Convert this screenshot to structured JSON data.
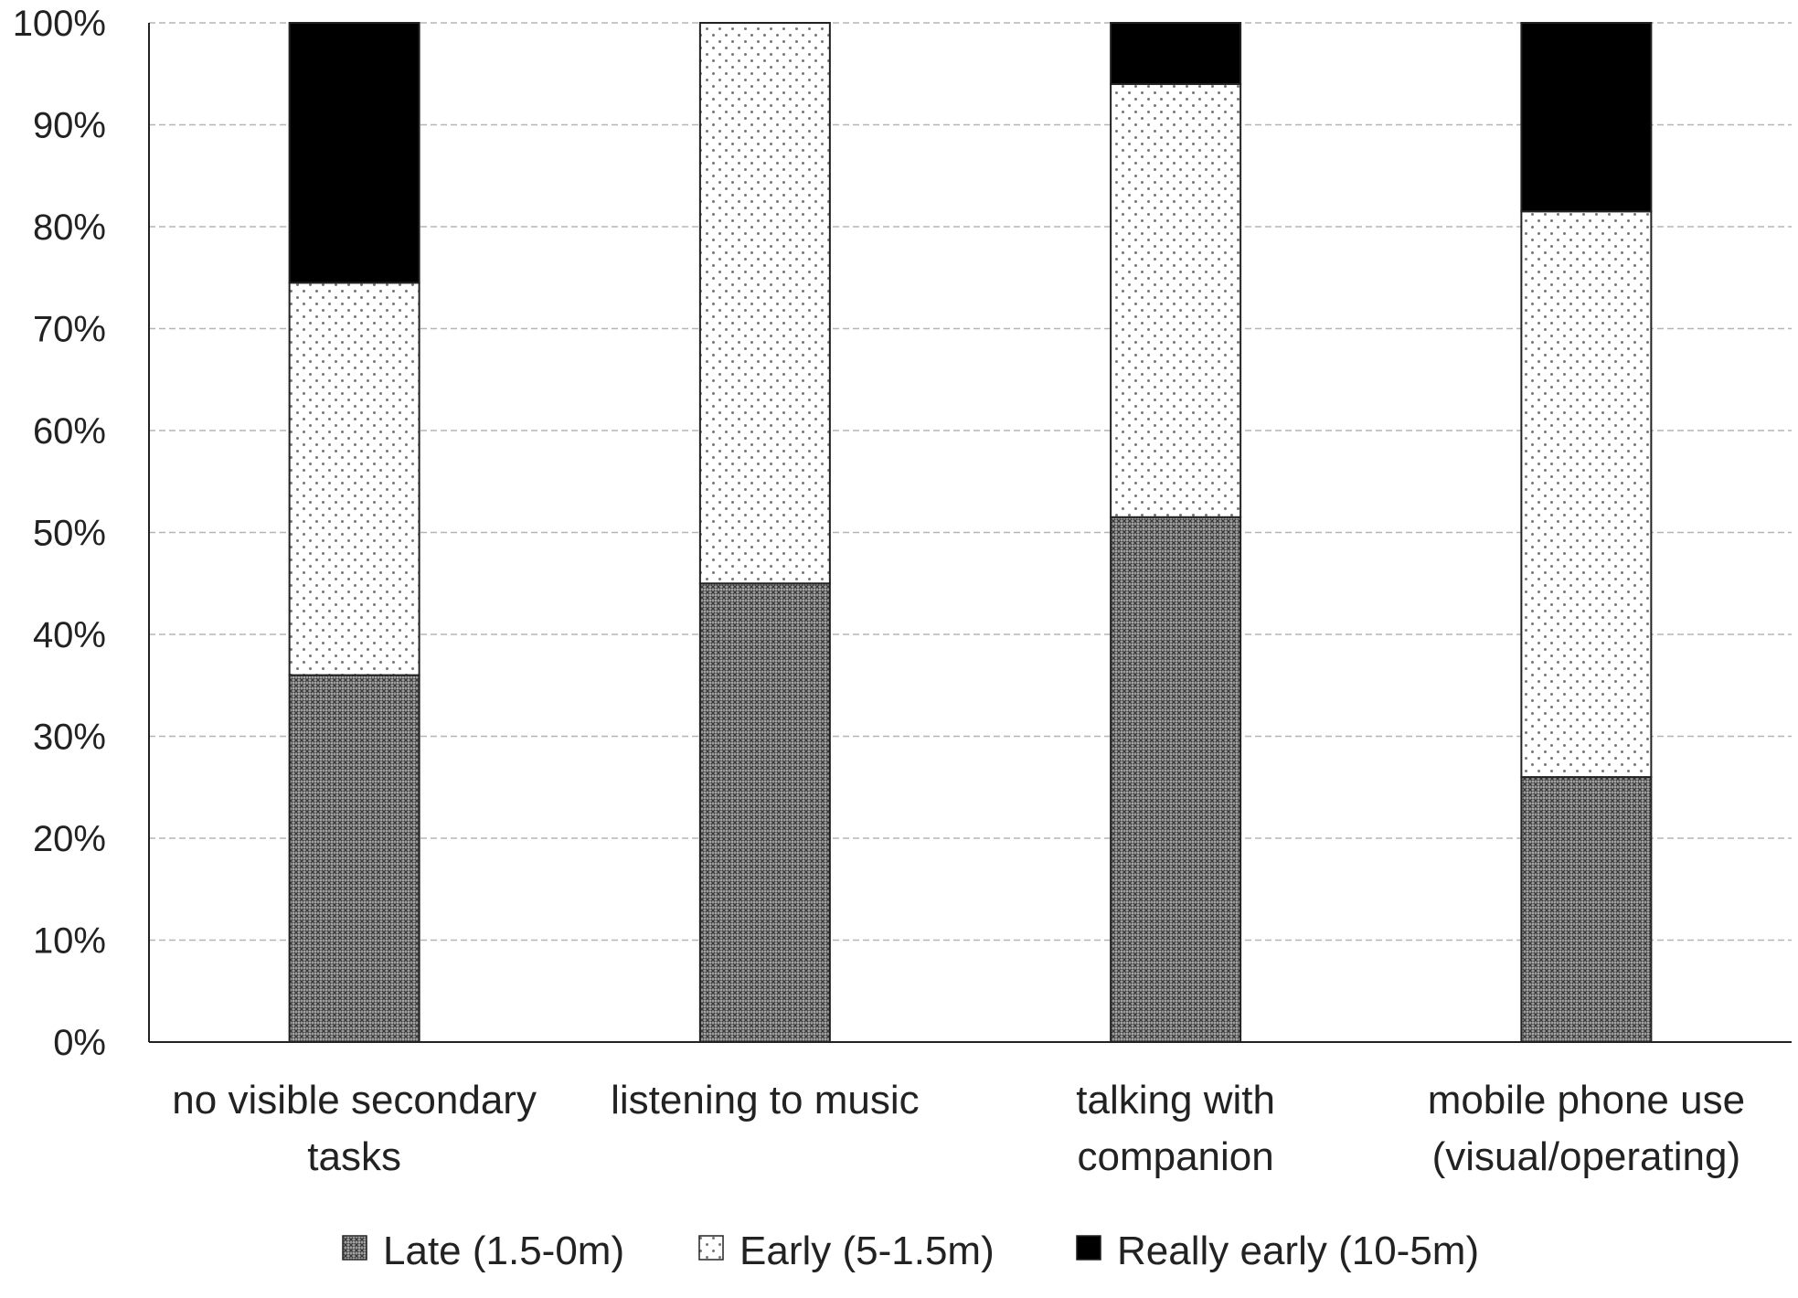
{
  "chart_data": {
    "type": "bar",
    "stacked": true,
    "title": "",
    "xlabel": "",
    "ylabel": "",
    "ylim": [
      0,
      100
    ],
    "y_ticks": [
      "0%",
      "10%",
      "20%",
      "30%",
      "40%",
      "50%",
      "60%",
      "70%",
      "80%",
      "90%",
      "100%"
    ],
    "y_tick_values": [
      0,
      10,
      20,
      30,
      40,
      50,
      60,
      70,
      80,
      90,
      100
    ],
    "grid": true,
    "categories": [
      [
        "no visible secondary",
        "tasks"
      ],
      [
        "listening to music"
      ],
      [
        "talking with",
        "companion"
      ],
      [
        "mobile phone use",
        "(visual/operating)"
      ]
    ],
    "series": [
      {
        "name": "Late (1.5-0m)",
        "pattern": "crosshatch",
        "color": "#555555",
        "values": [
          36,
          45,
          51.5,
          26
        ]
      },
      {
        "name": "Early (5-1.5m)",
        "pattern": "dots",
        "color": "#ffffff",
        "values": [
          38.5,
          55,
          42.5,
          55.5
        ]
      },
      {
        "name": "Really early (10-5m)",
        "pattern": "solid",
        "color": "#000000",
        "values": [
          25.5,
          0,
          6,
          18.5
        ]
      }
    ],
    "legend_position": "bottom"
  }
}
